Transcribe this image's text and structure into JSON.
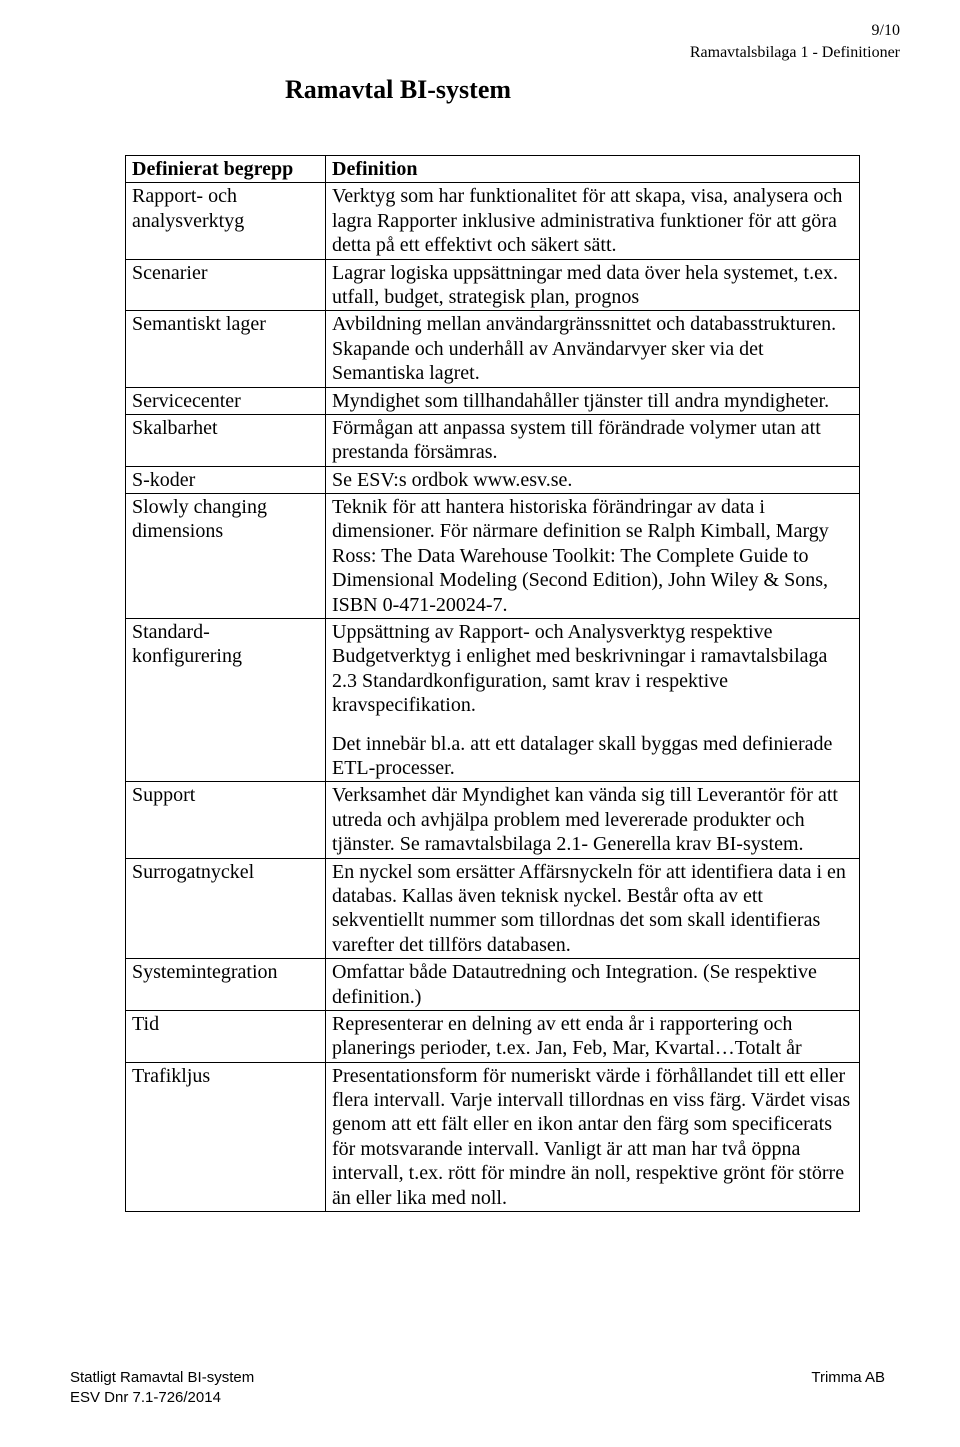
{
  "header": {
    "page_number": "9/10",
    "subtitle": "Ramavtalsbilaga 1 - Definitioner"
  },
  "title": "Ramavtal BI-system",
  "table": {
    "head": {
      "term": "Definierat begrepp",
      "def": "Definition"
    },
    "rows": [
      {
        "term": "Rapport- och analysverktyg",
        "def": [
          "Verktyg som har funktionalitet för att skapa, visa, analysera och lagra Rapporter inklusive administrativa funktioner för att göra detta på ett effektivt och säkert sätt."
        ]
      },
      {
        "term": "Scenarier",
        "def": [
          "Lagrar logiska uppsättningar med data över hela systemet, t.ex. utfall, budget, strategisk plan, prognos"
        ]
      },
      {
        "term": "Semantiskt lager",
        "def": [
          "Avbildning mellan användargränssnittet och databasstrukturen. Skapande och underhåll av Användarvyer sker via det Semantiska lagret."
        ]
      },
      {
        "term": "Servicecenter",
        "def": [
          "Myndighet som tillhandahåller tjänster till andra myndigheter."
        ]
      },
      {
        "term": "Skalbarhet",
        "def": [
          "Förmågan att anpassa system till förändrade volymer utan att prestanda försämras."
        ]
      },
      {
        "term": "S-koder",
        "def": [
          "Se ESV:s ordbok www.esv.se."
        ]
      },
      {
        "term": "Slowly changing dimensions",
        "def": [
          "Teknik för att hantera historiska förändringar av data i dimensioner. För närmare definition se Ralph Kimball, Margy Ross: The Data Warehouse Toolkit: The Complete Guide to Dimensional Modeling (Second Edition), John Wiley & Sons, ISBN 0-471-20024-7."
        ]
      },
      {
        "term": "Standard-konfigurering",
        "def": [
          "Uppsättning av Rapport- och Analysverktyg respektive Budgetverktyg i enlighet med beskrivningar i ramavtalsbilaga 2.3 Standardkonfiguration, samt krav i respektive kravspecifikation.",
          "Det innebär bl.a. att ett datalager skall byggas med definierade ETL-processer."
        ]
      },
      {
        "term": "Support",
        "def": [
          "Verksamhet där Myndighet kan vända sig till Leverantör för att utreda och avhjälpa problem med levererade produkter och tjänster. Se ramavtalsbilaga 2.1- Generella krav BI-system."
        ]
      },
      {
        "term": "Surrogatnyckel",
        "def": [
          "En nyckel som ersätter Affärsnyckeln för att identifiera data i en databas. Kallas även teknisk nyckel. Består ofta av ett sekventiellt nummer som tillordnas det som skall identifieras varefter det tillförs databasen."
        ]
      },
      {
        "term": "Systemintegration",
        "def": [
          "Omfattar både Datautredning och Integration. (Se respektive definition.)"
        ]
      },
      {
        "term": "Tid",
        "def": [
          "Representerar en delning av ett enda år i rapportering och planerings perioder, t.ex. Jan, Feb, Mar, Kvartal…Totalt år"
        ]
      },
      {
        "term": "Trafikljus",
        "def": [
          "Presentationsform för numeriskt värde i förhållandet till ett eller flera intervall. Varje intervall tillordnas en viss färg. Värdet visas genom att ett fält eller en ikon antar den färg som specificerats för motsvarande intervall. Vanligt är att man har två öppna intervall, t.ex. rött för mindre än noll, respektive grönt för större än eller lika med noll."
        ]
      }
    ]
  },
  "footer": {
    "left1": "Statligt Ramavtal BI-system",
    "left2": "ESV Dnr 7.1-726/2014",
    "right": "Trimma AB"
  }
}
